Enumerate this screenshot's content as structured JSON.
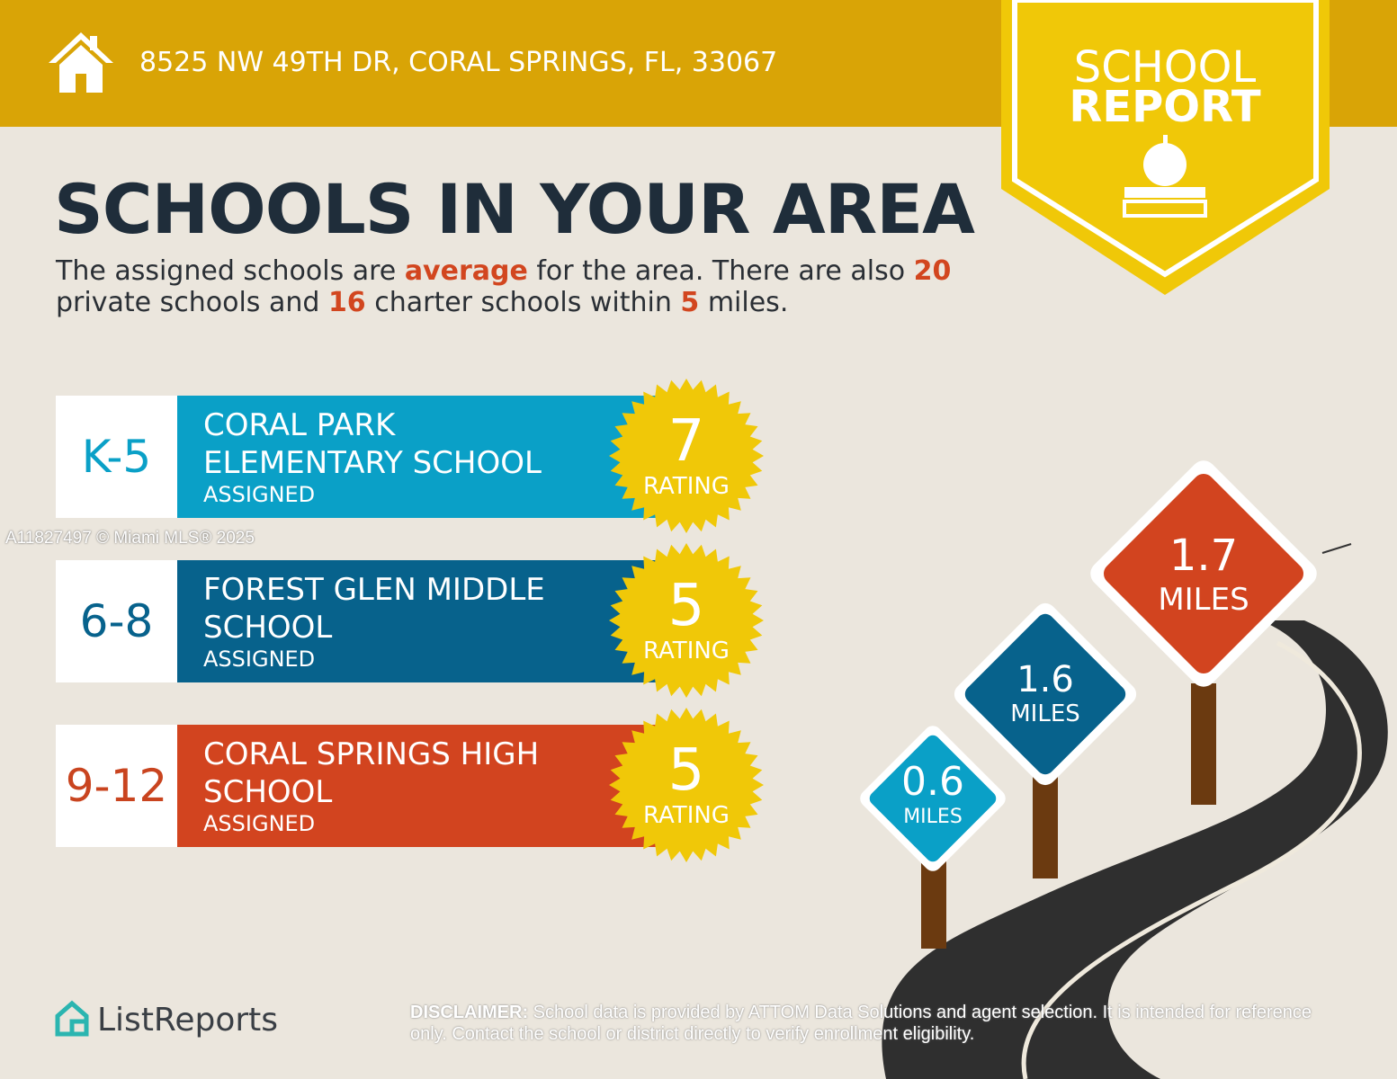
{
  "header": {
    "address": "8525 NW 49TH DR, CORAL SPRINGS, FL, 33067"
  },
  "badge": {
    "line1": "SCHOOL",
    "line2": "REPORT"
  },
  "title": "SCHOOLS IN YOUR AREA",
  "summary": [
    "The assigned schools are ",
    "average",
    " for the area. There are also ",
    "20",
    " private schools and ",
    "16",
    " charter schools within ",
    "5",
    " miles."
  ],
  "schools": [
    {
      "grade": "K-5",
      "name": "CORAL PARK ELEMENTARY SCHOOL",
      "status": "ASSIGNED",
      "rating": "7",
      "rating_label": "RATING"
    },
    {
      "grade": "6-8",
      "name": "FOREST GLEN MIDDLE SCHOOL",
      "status": "ASSIGNED",
      "rating": "5",
      "rating_label": "RATING"
    },
    {
      "grade": "9-12",
      "name": "CORAL SPRINGS HIGH SCHOOL",
      "status": "ASSIGNED",
      "rating": "5",
      "rating_label": "RATING"
    }
  ],
  "watermark": "A11827497 © Miami MLS® 2025",
  "distances": [
    {
      "value": "0.6",
      "unit": "MILES"
    },
    {
      "value": "1.6",
      "unit": "MILES"
    },
    {
      "value": "1.7",
      "unit": "MILES"
    }
  ],
  "logo": "ListReports",
  "disclaimer": {
    "label": "DISCLAIMER:",
    "text": " School data is provided by ATTOM Data Solutions and agent selection. It is intended for reference only. Contact the school or district directly to verify enrollment eligibility."
  }
}
